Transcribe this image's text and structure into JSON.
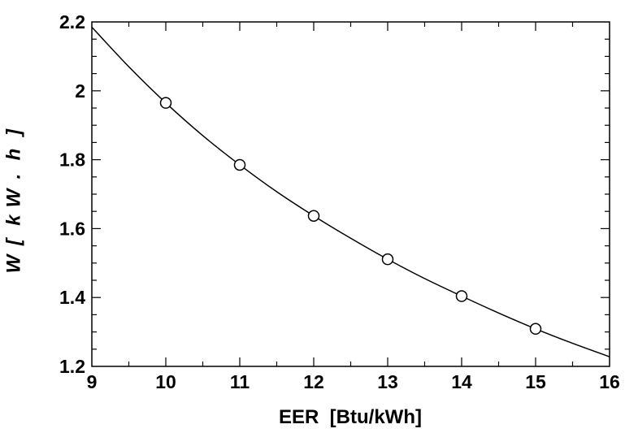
{
  "chart_data": {
    "type": "line",
    "title": "",
    "xlabel": "EER  [Btu/kWh]",
    "ylabel": "W [kW.h]",
    "xlim": [
      9,
      16
    ],
    "ylim": [
      1.2,
      2.2
    ],
    "xticks": [
      9,
      10,
      11,
      12,
      13,
      14,
      15,
      16
    ],
    "yticks": [
      1.2,
      1.4,
      1.6,
      1.8,
      2.0,
      2.2
    ],
    "xtick_labels": [
      "9",
      "10",
      "11",
      "12",
      "13",
      "14",
      "15",
      "16"
    ],
    "ytick_labels": [
      "1.2",
      "1.4",
      "1.6",
      "1.8",
      "2",
      "2.2"
    ],
    "grid": false,
    "legend": "none",
    "series": [
      {
        "style": "line",
        "x": [
          9,
          9.5,
          10,
          10.5,
          11,
          11.5,
          12,
          12.5,
          13,
          13.5,
          14,
          14.5,
          15,
          15.5,
          16
        ],
        "y": [
          2.185,
          2.07,
          1.965,
          1.87,
          1.785,
          1.707,
          1.637,
          1.572,
          1.511,
          1.455,
          1.404,
          1.355,
          1.309,
          1.267,
          1.228
        ]
      },
      {
        "style": "markers",
        "marker": "open-circle",
        "x": [
          10,
          11,
          12,
          13,
          14,
          15
        ],
        "y": [
          1.965,
          1.785,
          1.637,
          1.511,
          1.404,
          1.309
        ]
      }
    ],
    "colors": {
      "line": "#000000",
      "marker_fill": "#ffffff",
      "axes": "#000000"
    }
  }
}
